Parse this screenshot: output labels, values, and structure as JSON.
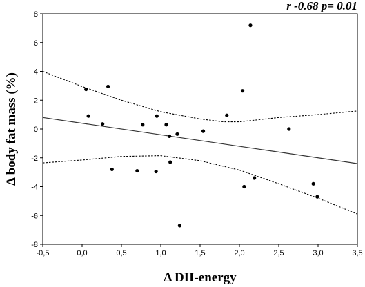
{
  "chart_data": {
    "type": "scatter",
    "annotation": "r -0.68 p= 0.01",
    "xlabel": "Δ DII-energy",
    "ylabel": "Δ body fat mass (%)",
    "xlim": [
      -0.5,
      3.5
    ],
    "ylim": [
      -8,
      8
    ],
    "x_ticks": [
      "-0,5",
      "0,0",
      "0,5",
      "1,0",
      "1,5",
      "2,0",
      "2,5",
      "3,0",
      "3,5"
    ],
    "y_ticks": [
      "8",
      "6",
      "4",
      "2",
      "0",
      "-2",
      "-4",
      "-6",
      "-8"
    ],
    "grid": false,
    "points": [
      {
        "x": 0.05,
        "y": 2.75
      },
      {
        "x": 0.08,
        "y": 0.9
      },
      {
        "x": 0.26,
        "y": 0.35
      },
      {
        "x": 0.33,
        "y": 2.95
      },
      {
        "x": 0.38,
        "y": -2.8
      },
      {
        "x": 0.7,
        "y": -2.9
      },
      {
        "x": 0.77,
        "y": 0.3
      },
      {
        "x": 0.94,
        "y": -2.95
      },
      {
        "x": 0.95,
        "y": 0.9
      },
      {
        "x": 1.07,
        "y": 0.3
      },
      {
        "x": 1.11,
        "y": -0.5
      },
      {
        "x": 1.12,
        "y": -2.3
      },
      {
        "x": 1.21,
        "y": -0.35
      },
      {
        "x": 1.24,
        "y": -6.7
      },
      {
        "x": 1.54,
        "y": -0.15
      },
      {
        "x": 1.84,
        "y": 0.95
      },
      {
        "x": 2.04,
        "y": 2.65
      },
      {
        "x": 2.06,
        "y": -4.0
      },
      {
        "x": 2.14,
        "y": 7.2
      },
      {
        "x": 2.19,
        "y": -3.4
      },
      {
        "x": 2.63,
        "y": 0.0
      },
      {
        "x": 2.94,
        "y": -3.8
      },
      {
        "x": 2.99,
        "y": -4.7
      }
    ],
    "regression_line": [
      {
        "x": -0.5,
        "y": 0.8
      },
      {
        "x": 3.5,
        "y": -2.4
      }
    ],
    "confidence_upper": [
      {
        "x": -0.5,
        "y": 4.0
      },
      {
        "x": 0.0,
        "y": 2.95
      },
      {
        "x": 0.5,
        "y": 2.0
      },
      {
        "x": 1.0,
        "y": 1.2
      },
      {
        "x": 1.5,
        "y": 0.7
      },
      {
        "x": 1.8,
        "y": 0.5
      },
      {
        "x": 2.0,
        "y": 0.5
      },
      {
        "x": 2.5,
        "y": 0.8
      },
      {
        "x": 3.0,
        "y": 1.0
      },
      {
        "x": 3.5,
        "y": 1.25
      }
    ],
    "confidence_lower": [
      {
        "x": -0.5,
        "y": -2.35
      },
      {
        "x": 0.0,
        "y": -2.15
      },
      {
        "x": 0.5,
        "y": -1.9
      },
      {
        "x": 1.0,
        "y": -1.85
      },
      {
        "x": 1.5,
        "y": -2.2
      },
      {
        "x": 2.0,
        "y": -2.85
      },
      {
        "x": 2.5,
        "y": -3.8
      },
      {
        "x": 3.0,
        "y": -4.8
      },
      {
        "x": 3.5,
        "y": -5.9
      }
    ]
  }
}
